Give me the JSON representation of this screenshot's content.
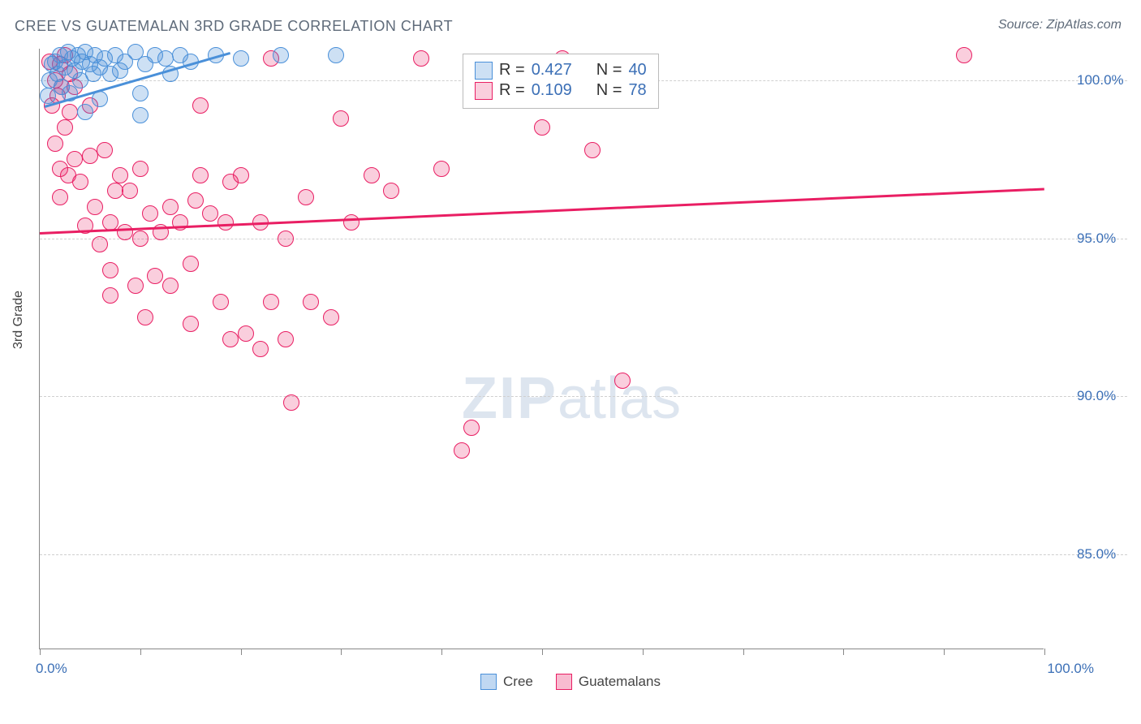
{
  "title": "CREE VS GUATEMALAN 3RD GRADE CORRELATION CHART",
  "source": "Source: ZipAtlas.com",
  "watermark_zip": "ZIP",
  "watermark_atlas": "atlas",
  "chart": {
    "type": "scatter",
    "background_color": "#ffffff",
    "grid_color": "#cfcfcf",
    "axis_color": "#888888",
    "ylabel": "3rd Grade",
    "label_fontsize": 16,
    "tick_fontsize": 17,
    "tick_color": "#3b6fb6",
    "xlim": [
      0,
      100
    ],
    "ylim": [
      82,
      101
    ],
    "xticks": [
      0,
      10,
      20,
      30,
      40,
      50,
      60,
      70,
      80,
      90,
      100
    ],
    "xtick_labels": {
      "left": "0.0%",
      "right": "100.0%"
    },
    "yticks": [
      85,
      90,
      95,
      100
    ],
    "ytick_labels": [
      "85.0%",
      "90.0%",
      "95.0%",
      "100.0%"
    ],
    "marker_radius": 10,
    "marker_border_width": 1.5,
    "marker_fill_opacity": 0.28,
    "trend_line_width": 3,
    "series": [
      {
        "name": "Cree",
        "color": "#4a90d9",
        "fill": "rgba(74,144,217,0.28)",
        "r": 0.427,
        "n": 40,
        "trend": {
          "x1": 0.5,
          "y1": 99.2,
          "x2": 19,
          "y2": 100.9
        },
        "points": [
          [
            0.8,
            99.5
          ],
          [
            1.0,
            100.0
          ],
          [
            1.2,
            100.5
          ],
          [
            1.5,
            100.6
          ],
          [
            1.8,
            100.2
          ],
          [
            2.0,
            100.8
          ],
          [
            2.2,
            99.8
          ],
          [
            2.5,
            100.4
          ],
          [
            2.8,
            100.9
          ],
          [
            3.0,
            99.6
          ],
          [
            3.2,
            100.7
          ],
          [
            3.5,
            100.3
          ],
          [
            3.8,
            100.8
          ],
          [
            4.0,
            100.0
          ],
          [
            4.2,
            100.6
          ],
          [
            4.5,
            99.0
          ],
          [
            4.5,
            100.9
          ],
          [
            5.0,
            100.5
          ],
          [
            5.3,
            100.2
          ],
          [
            5.5,
            100.8
          ],
          [
            6.0,
            100.4
          ],
          [
            6.0,
            99.4
          ],
          [
            6.5,
            100.7
          ],
          [
            7.0,
            100.2
          ],
          [
            7.5,
            100.8
          ],
          [
            8.0,
            100.3
          ],
          [
            8.5,
            100.6
          ],
          [
            9.5,
            100.9
          ],
          [
            10.0,
            99.6
          ],
          [
            10.5,
            100.5
          ],
          [
            11.5,
            100.8
          ],
          [
            12.5,
            100.7
          ],
          [
            13.0,
            100.2
          ],
          [
            14.0,
            100.8
          ],
          [
            15.0,
            100.6
          ],
          [
            10.0,
            98.9
          ],
          [
            17.5,
            100.8
          ],
          [
            20.0,
            100.7
          ],
          [
            24.0,
            100.8
          ],
          [
            29.5,
            100.8
          ]
        ]
      },
      {
        "name": "Guatemalans",
        "color": "#e91e63",
        "fill": "rgba(233,30,99,0.22)",
        "r": 0.109,
        "n": 78,
        "trend": {
          "x1": 0,
          "y1": 95.2,
          "x2": 100,
          "y2": 96.6
        },
        "points": [
          [
            1.0,
            100.6
          ],
          [
            1.2,
            99.2
          ],
          [
            1.5,
            100.0
          ],
          [
            1.5,
            98.0
          ],
          [
            1.8,
            99.5
          ],
          [
            2.0,
            100.5
          ],
          [
            2.0,
            97.2
          ],
          [
            2.2,
            99.8
          ],
          [
            2.5,
            98.5
          ],
          [
            2.5,
            100.8
          ],
          [
            2.8,
            97.0
          ],
          [
            3.0,
            99.0
          ],
          [
            3.0,
            100.2
          ],
          [
            2.0,
            96.3
          ],
          [
            3.5,
            97.5
          ],
          [
            3.5,
            99.8
          ],
          [
            4.0,
            96.8
          ],
          [
            4.5,
            95.4
          ],
          [
            5.0,
            97.6
          ],
          [
            5.0,
            99.2
          ],
          [
            5.5,
            96.0
          ],
          [
            6.0,
            94.8
          ],
          [
            6.5,
            97.8
          ],
          [
            7.0,
            95.5
          ],
          [
            7.0,
            93.2
          ],
          [
            7.5,
            96.5
          ],
          [
            8.0,
            97.0
          ],
          [
            7.0,
            94.0
          ],
          [
            8.5,
            95.2
          ],
          [
            9.0,
            96.5
          ],
          [
            9.5,
            93.5
          ],
          [
            10.0,
            95.0
          ],
          [
            10.0,
            97.2
          ],
          [
            10.5,
            92.5
          ],
          [
            11.0,
            95.8
          ],
          [
            11.5,
            93.8
          ],
          [
            12.0,
            95.2
          ],
          [
            13.0,
            96.0
          ],
          [
            13.0,
            93.5
          ],
          [
            14.0,
            95.5
          ],
          [
            15.0,
            94.2
          ],
          [
            15.5,
            96.2
          ],
          [
            15.0,
            92.3
          ],
          [
            16.0,
            97.0
          ],
          [
            16.0,
            99.2
          ],
          [
            17.0,
            95.8
          ],
          [
            18.0,
            93.0
          ],
          [
            18.5,
            95.5
          ],
          [
            19.0,
            96.8
          ],
          [
            19.0,
            91.8
          ],
          [
            20.0,
            97.0
          ],
          [
            20.5,
            92.0
          ],
          [
            22.0,
            95.5
          ],
          [
            22.0,
            91.5
          ],
          [
            23.0,
            93.0
          ],
          [
            24.5,
            95.0
          ],
          [
            24.5,
            91.8
          ],
          [
            25.0,
            89.8
          ],
          [
            26.5,
            96.3
          ],
          [
            27.0,
            93.0
          ],
          [
            23.0,
            100.7
          ],
          [
            29.0,
            92.5
          ],
          [
            30.0,
            98.8
          ],
          [
            31.0,
            95.5
          ],
          [
            33.0,
            97.0
          ],
          [
            35.0,
            96.5
          ],
          [
            38.0,
            100.7
          ],
          [
            40.0,
            97.2
          ],
          [
            42.0,
            88.3
          ],
          [
            43.0,
            89.0
          ],
          [
            44.0,
            100.6
          ],
          [
            50.0,
            98.5
          ],
          [
            52.0,
            100.7
          ],
          [
            55.0,
            97.8
          ],
          [
            58.0,
            100.5
          ],
          [
            58.0,
            90.5
          ],
          [
            60.0,
            100.6
          ],
          [
            92.0,
            100.8
          ]
        ]
      }
    ],
    "stats_legend": {
      "r_label": "R =",
      "n_label": "N =",
      "position": "top-center"
    },
    "bottom_legend": [
      {
        "label": "Cree",
        "color": "#4a90d9",
        "fill": "rgba(74,144,217,0.35)"
      },
      {
        "label": "Guatemalans",
        "color": "#e91e63",
        "fill": "rgba(233,30,99,0.3)"
      }
    ]
  }
}
